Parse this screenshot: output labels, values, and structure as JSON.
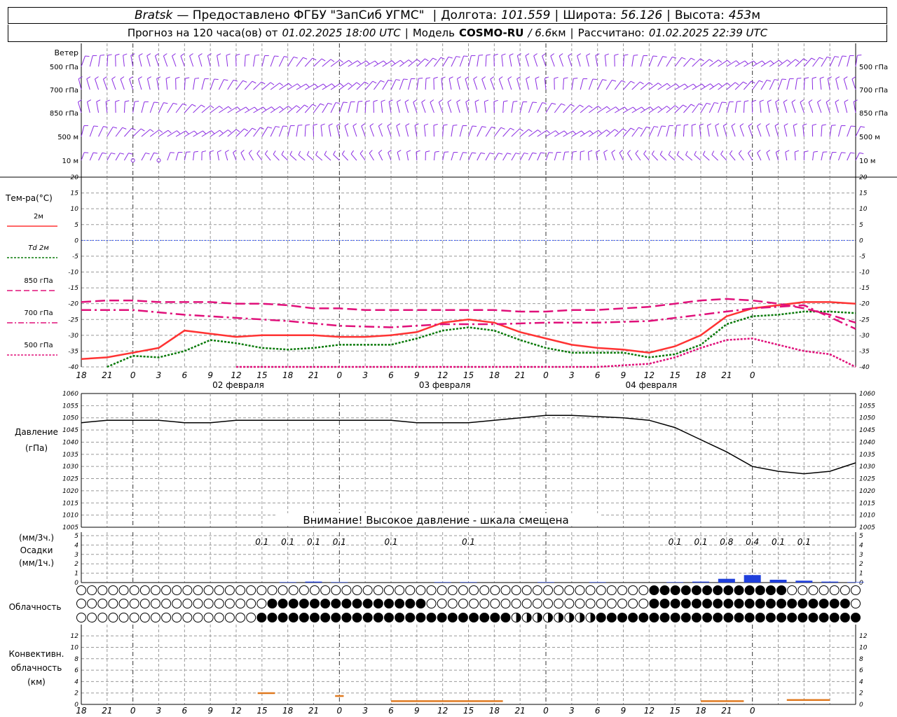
{
  "header": {
    "station": "Bratsk",
    "provided": "— Предоставлено ФГБУ \"ЗапСиб УГМС\"",
    "lon_label": "Долгота:",
    "lon": "101.559",
    "lat_label": "Широта:",
    "lat": "56.126",
    "alt_label": "Высота:",
    "alt": "453",
    "alt_unit": "м",
    "forecast_label": "Прогноз на 120 часа(ов) от",
    "forecast_time": "01.02.2025 18:00 UTC",
    "model_label": "Модель",
    "model": "COSMO-RU",
    "resolution": "/ 6.6",
    "resolution_unit": "км",
    "calc_label": "Рассчитано:",
    "calc_time": "01.02.2025 22:39 UTC"
  },
  "colors": {
    "wind": "#8a2be2",
    "t2m": "#ff3333",
    "td2m": "#0a7a0a",
    "t850": "#e0107a",
    "t700": "#e0107a",
    "t500": "#e0107a",
    "pressure": "#000000",
    "precip": "#1f3fdc",
    "conv": "#e07a20",
    "zero": "#3355ff",
    "grid": "#999999"
  },
  "x_ticks": [
    "18",
    "21",
    "0",
    "3",
    "6",
    "9",
    "12",
    "15",
    "18",
    "21",
    "0",
    "3",
    "6",
    "9",
    "12",
    "15",
    "18",
    "21",
    "0",
    "3",
    "6",
    "9",
    "12",
    "15",
    "18",
    "21",
    "0"
  ],
  "dates": [
    "02 февраля",
    "03 февраля",
    "04 февраля"
  ],
  "wind": {
    "title": "Ветер",
    "levels": [
      "500 гПа",
      "700 гПа",
      "850 гПа",
      "500 м",
      "10 м"
    ],
    "right_levels": [
      "500 гПа",
      "700 гПа",
      "850 гПа",
      "500 м",
      "10 м"
    ]
  },
  "temp": {
    "title": "Тем-ра(°C)",
    "legend": [
      {
        "label": "2м",
        "style": "solid"
      },
      {
        "label": "Td 2м",
        "style": "dotted"
      },
      {
        "label": "850 гПа",
        "style": "dashed"
      },
      {
        "label": "700 гПа",
        "style": "dashdot"
      },
      {
        "label": "500 гПа",
        "style": "dashedfine"
      }
    ],
    "y_ticks": [
      "20",
      "15",
      "10",
      "5",
      "0",
      "-5",
      "-10",
      "-15",
      "-20",
      "-25",
      "-30",
      "-35",
      "-40"
    ]
  },
  "pressure": {
    "title": "Давление",
    "unit": "(гПа)",
    "warning": "Внимание! Высокое давление - шкала смещена",
    "y_ticks": [
      "1060",
      "1055",
      "1050",
      "1045",
      "1040",
      "1035",
      "1030",
      "1025",
      "1020",
      "1015",
      "1010",
      "1005"
    ]
  },
  "precip": {
    "unit3": "(мм/3ч.)",
    "title": "Осадки",
    "unit1": "(мм/1ч.)",
    "y_ticks": [
      "5",
      "4",
      "3",
      "2",
      "1",
      "0"
    ],
    "labels": [
      {
        "h": 21,
        "v": "0.1"
      },
      {
        "h": 24,
        "v": "0.1"
      },
      {
        "h": 27,
        "v": "0.1"
      },
      {
        "h": 30,
        "v": "0.1"
      },
      {
        "h": 36,
        "v": "0.1"
      },
      {
        "h": 45,
        "v": "0.1"
      },
      {
        "h": 69,
        "v": "0.1"
      },
      {
        "h": 72,
        "v": "0.1"
      },
      {
        "h": 75,
        "v": "0.8"
      },
      {
        "h": 78,
        "v": "0.4"
      },
      {
        "h": 81,
        "v": "0.1"
      },
      {
        "h": 84,
        "v": "0.1"
      }
    ]
  },
  "cloud": {
    "title": "Облачность"
  },
  "conv": {
    "title1": "Конвективн.",
    "title2": "облачность",
    "unit": "(км)",
    "y_ticks": [
      "12",
      "10",
      "8",
      "6",
      "4",
      "2",
      "0"
    ]
  },
  "chart_data": {
    "type": "line",
    "x_hours": "hours from 01.02.2025 18:00 UTC",
    "temperature": {
      "ylim": [
        -40,
        20
      ],
      "series": [
        {
          "name": "2м",
          "x": [
            0,
            3,
            6,
            9,
            12,
            15,
            18,
            21,
            24,
            27,
            30,
            33,
            36,
            39,
            42,
            45,
            48,
            51,
            54,
            57,
            60,
            63,
            66,
            69,
            72,
            75,
            78,
            81,
            84,
            87,
            90
          ],
          "values": [
            -37.5,
            -37,
            -35.5,
            -34,
            -28.5,
            -29.5,
            -30.5,
            -30,
            -30,
            -30,
            -30.5,
            -30.5,
            -30,
            -29,
            -26,
            -25,
            -26,
            -29,
            -31,
            -33,
            -34,
            -34.5,
            -35.5,
            -33.5,
            -30,
            -24,
            -21.5,
            -20.5,
            -19.5,
            -19.5,
            -20
          ]
        },
        {
          "name": "Td 2м",
          "x": [
            3,
            6,
            9,
            12,
            15,
            18,
            21,
            24,
            27,
            30,
            33,
            36,
            39,
            42,
            45,
            48,
            51,
            54,
            57,
            60,
            63,
            66,
            69,
            72,
            75,
            78,
            81,
            84,
            87,
            90
          ],
          "values": [
            -40,
            -36.5,
            -37,
            -35,
            -31.5,
            -32.5,
            -34,
            -34.5,
            -34,
            -33,
            -33,
            -33,
            -31,
            -28.5,
            -27.5,
            -28.5,
            -31.5,
            -34,
            -35.5,
            -35.5,
            -35.5,
            -37,
            -36,
            -33,
            -26.5,
            -24,
            -23.5,
            -22.5,
            -22.5,
            -23
          ]
        },
        {
          "name": "850 гПа",
          "x": [
            0,
            3,
            6,
            9,
            12,
            15,
            18,
            21,
            24,
            27,
            30,
            33,
            36,
            39,
            42,
            45,
            48,
            51,
            54,
            57,
            60,
            63,
            66,
            69,
            72,
            75,
            78,
            81,
            84,
            87,
            90
          ],
          "values": [
            -19.5,
            -19,
            -19,
            -19.5,
            -19.5,
            -19.5,
            -20,
            -20,
            -20.5,
            -21.5,
            -21.5,
            -22,
            -22,
            -22,
            -22,
            -22,
            -22,
            -22.5,
            -22.5,
            -22,
            -22,
            -21.5,
            -21,
            -20,
            -19,
            -18.5,
            -19,
            -20,
            -21.5,
            -23.5,
            -26
          ]
        },
        {
          "name": "700 гПа",
          "x": [
            0,
            6,
            12,
            18,
            24,
            30,
            36,
            42,
            48,
            54,
            60,
            66,
            72,
            78,
            84,
            90
          ],
          "values": [
            -22,
            -22,
            -23.5,
            -24.5,
            -25.5,
            -27,
            -27.5,
            -26.5,
            -26.5,
            -26,
            -26,
            -25.5,
            -23.5,
            -21.5,
            -20.5,
            -28
          ]
        },
        {
          "name": "500 гПа",
          "x": [
            18,
            21,
            24,
            60,
            66,
            69,
            72,
            75,
            78,
            81,
            84,
            87,
            90
          ],
          "values": [
            -40,
            -40,
            -40,
            -40,
            -39,
            -37,
            -34,
            -31.5,
            -31,
            -33,
            -35,
            -36,
            -40
          ]
        }
      ]
    },
    "pressure": {
      "ylim": [
        1005,
        1060
      ],
      "x": [
        0,
        3,
        6,
        9,
        12,
        15,
        18,
        21,
        24,
        27,
        30,
        33,
        36,
        39,
        42,
        45,
        48,
        51,
        54,
        57,
        60,
        63,
        66,
        69,
        72,
        75,
        78,
        81,
        84,
        87,
        90
      ],
      "values": [
        1048,
        1049,
        1049,
        1049,
        1048,
        1048,
        1049,
        1049,
        1049,
        1049,
        1049,
        1049,
        1049,
        1048,
        1048,
        1048,
        1049,
        1050,
        1051,
        1051,
        1050.5,
        1050,
        1049,
        1046,
        1041,
        1036,
        1030,
        1028,
        1027,
        1028,
        1031.5
      ]
    },
    "precip": {
      "ylim": [
        0,
        5
      ],
      "x": [
        24,
        27,
        30,
        42,
        45,
        54,
        60,
        69,
        72,
        75,
        78,
        81,
        84,
        87,
        90
      ],
      "values": [
        0.05,
        0.1,
        0.05,
        0.05,
        0.05,
        0.05,
        0.05,
        0.05,
        0.1,
        0.4,
        0.8,
        0.3,
        0.2,
        0.1,
        0.05
      ]
    },
    "convective": {
      "ylim": [
        0,
        13
      ],
      "segments": [
        {
          "x0": 20.5,
          "x1": 22.5,
          "value": 2
        },
        {
          "x0": 29.5,
          "x1": 30.5,
          "value": 1.5
        },
        {
          "x0": 36,
          "x1": 49,
          "value": 0.6
        },
        {
          "x0": 72,
          "x1": 77,
          "value": 0.6
        },
        {
          "x0": 82,
          "x1": 87,
          "value": 0.8
        }
      ]
    }
  }
}
